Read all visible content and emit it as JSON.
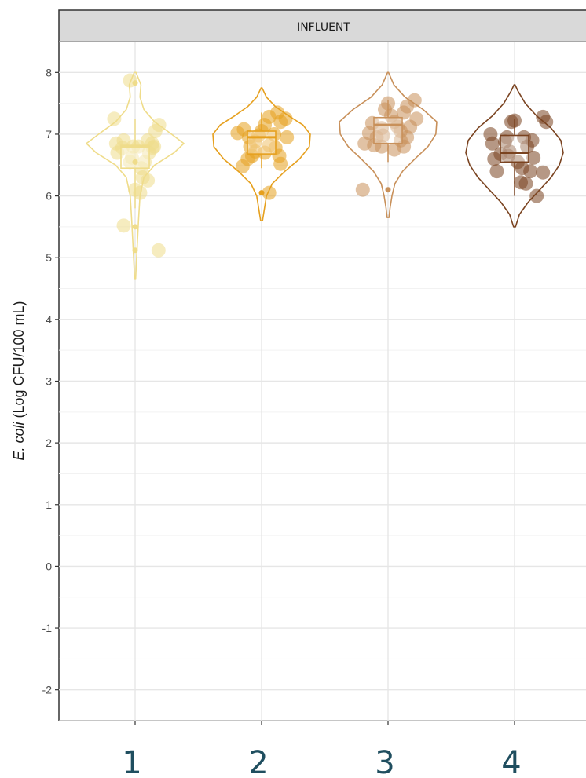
{
  "chart_data": {
    "type": "violin-box-jitter",
    "panel_title": "INFLUENT",
    "ylabel": {
      "italic": "E. coli",
      "rest": " (Log CFU/100 mL)"
    },
    "ylim": [
      -2.5,
      8.5
    ],
    "yticks": [
      -2,
      -1,
      0,
      1,
      2,
      3,
      4,
      5,
      6,
      7,
      8
    ],
    "categories": [
      "1",
      "2",
      "3",
      "4"
    ],
    "grid": true,
    "series": [
      {
        "category": "1",
        "color": "#efdc8a",
        "median": 6.8,
        "q1": 6.45,
        "q3": 6.82,
        "whisker_low": 5.8,
        "whisker_high": 7.25,
        "outliers": [
          7.83,
          5.5,
          5.12,
          6.55
        ],
        "violin_min": 4.65,
        "violin_max": 8.0,
        "violin_profile": [
          [
            4.65,
            0.01
          ],
          [
            5.0,
            0.03
          ],
          [
            5.3,
            0.05
          ],
          [
            5.6,
            0.07
          ],
          [
            6.0,
            0.1
          ],
          [
            6.3,
            0.18
          ],
          [
            6.5,
            0.4
          ],
          [
            6.7,
            0.8
          ],
          [
            6.85,
            1.0
          ],
          [
            7.0,
            0.75
          ],
          [
            7.2,
            0.4
          ],
          [
            7.4,
            0.18
          ],
          [
            7.6,
            0.1
          ],
          [
            7.8,
            0.12
          ],
          [
            8.0,
            0.02
          ]
        ],
        "points": [
          [
            -0.08,
            7.87
          ],
          [
            -0.33,
            7.25
          ],
          [
            -0.3,
            6.85
          ],
          [
            -0.28,
            6.7
          ],
          [
            -0.18,
            6.9
          ],
          [
            -0.2,
            6.78
          ],
          [
            -0.03,
            6.8
          ],
          [
            0.05,
            6.8
          ],
          [
            -0.05,
            6.62
          ],
          [
            0.0,
            6.1
          ],
          [
            0.08,
            6.05
          ],
          [
            0.1,
            6.45
          ],
          [
            0.15,
            6.55
          ],
          [
            0.2,
            6.9
          ],
          [
            0.22,
            6.7
          ],
          [
            0.27,
            6.85
          ],
          [
            0.32,
            7.05
          ],
          [
            0.38,
            7.15
          ],
          [
            0.28,
            6.78
          ],
          [
            0.2,
            6.25
          ],
          [
            0.12,
            6.3
          ],
          [
            -0.18,
            5.52
          ],
          [
            0.37,
            5.12
          ],
          [
            -0.08,
            6.55
          ],
          [
            0.3,
            6.8
          ]
        ]
      },
      {
        "category": "2",
        "color": "#e6a01e",
        "median": 6.95,
        "q1": 6.68,
        "q3": 7.05,
        "whisker_low": 6.45,
        "whisker_high": 7.35,
        "outliers": [
          6.05
        ],
        "violin_min": 5.6,
        "violin_max": 7.75,
        "violin_profile": [
          [
            5.6,
            0.02
          ],
          [
            5.8,
            0.06
          ],
          [
            6.0,
            0.1
          ],
          [
            6.2,
            0.22
          ],
          [
            6.4,
            0.48
          ],
          [
            6.6,
            0.78
          ],
          [
            6.8,
            0.98
          ],
          [
            7.0,
            1.0
          ],
          [
            7.15,
            0.85
          ],
          [
            7.3,
            0.55
          ],
          [
            7.45,
            0.28
          ],
          [
            7.6,
            0.1
          ],
          [
            7.75,
            0.01
          ]
        ],
        "points": [
          [
            -0.38,
            7.02
          ],
          [
            -0.28,
            7.08
          ],
          [
            -0.2,
            6.95
          ],
          [
            -0.18,
            6.8
          ],
          [
            -0.1,
            6.72
          ],
          [
            -0.05,
            6.98
          ],
          [
            0.0,
            7.05
          ],
          [
            0.05,
            7.15
          ],
          [
            0.12,
            7.28
          ],
          [
            0.2,
            7.0
          ],
          [
            0.25,
            7.35
          ],
          [
            0.3,
            7.2
          ],
          [
            0.38,
            7.25
          ],
          [
            0.4,
            6.95
          ],
          [
            0.22,
            6.78
          ],
          [
            0.28,
            6.65
          ],
          [
            0.3,
            6.52
          ],
          [
            -0.3,
            6.48
          ],
          [
            -0.22,
            6.6
          ],
          [
            -0.15,
            6.65
          ],
          [
            0.05,
            6.7
          ],
          [
            0.12,
            6.82
          ],
          [
            0.12,
            6.05
          ],
          [
            -0.1,
            6.88
          ]
        ]
      },
      {
        "category": "3",
        "color": "#c8905a",
        "median": 7.15,
        "q1": 6.85,
        "q3": 7.27,
        "whisker_low": 6.55,
        "whisker_high": 7.55,
        "outliers": [
          6.1
        ],
        "violin_min": 5.65,
        "violin_max": 8.0,
        "violin_profile": [
          [
            5.65,
            0.02
          ],
          [
            5.8,
            0.04
          ],
          [
            6.0,
            0.08
          ],
          [
            6.2,
            0.14
          ],
          [
            6.4,
            0.3
          ],
          [
            6.6,
            0.55
          ],
          [
            6.8,
            0.82
          ],
          [
            7.0,
            0.98
          ],
          [
            7.2,
            1.0
          ],
          [
            7.4,
            0.72
          ],
          [
            7.6,
            0.35
          ],
          [
            7.8,
            0.12
          ],
          [
            8.0,
            0.01
          ]
        ],
        "points": [
          [
            -0.37,
            6.85
          ],
          [
            -0.3,
            7.02
          ],
          [
            -0.25,
            7.18
          ],
          [
            -0.18,
            6.95
          ],
          [
            -0.1,
            7.1
          ],
          [
            -0.05,
            7.4
          ],
          [
            0.0,
            7.5
          ],
          [
            0.05,
            7.3
          ],
          [
            0.1,
            7.2
          ],
          [
            0.15,
            7.12
          ],
          [
            0.2,
            7.05
          ],
          [
            0.25,
            7.35
          ],
          [
            0.3,
            7.45
          ],
          [
            0.35,
            7.12
          ],
          [
            0.42,
            7.55
          ],
          [
            0.45,
            7.25
          ],
          [
            0.2,
            6.9
          ],
          [
            0.25,
            6.8
          ],
          [
            0.1,
            6.75
          ],
          [
            -0.1,
            6.8
          ],
          [
            -0.22,
            6.82
          ],
          [
            -0.08,
            6.98
          ],
          [
            0.3,
            6.95
          ],
          [
            -0.4,
            6.1
          ]
        ]
      },
      {
        "category": "4",
        "color": "#7a4320",
        "median": 6.7,
        "q1": 6.55,
        "q3": 6.98,
        "whisker_low": 6.0,
        "whisker_high": 7.25,
        "outliers": [],
        "violin_min": 5.5,
        "violin_max": 7.8,
        "violin_profile": [
          [
            5.5,
            0.02
          ],
          [
            5.7,
            0.1
          ],
          [
            5.9,
            0.28
          ],
          [
            6.1,
            0.52
          ],
          [
            6.3,
            0.75
          ],
          [
            6.5,
            0.92
          ],
          [
            6.7,
            1.0
          ],
          [
            6.9,
            0.95
          ],
          [
            7.1,
            0.75
          ],
          [
            7.3,
            0.45
          ],
          [
            7.5,
            0.22
          ],
          [
            7.7,
            0.07
          ],
          [
            7.8,
            0.01
          ]
        ],
        "points": [
          [
            -0.38,
            7.0
          ],
          [
            -0.35,
            6.85
          ],
          [
            -0.32,
            6.6
          ],
          [
            -0.28,
            6.4
          ],
          [
            -0.22,
            6.68
          ],
          [
            -0.15,
            6.88
          ],
          [
            -0.12,
            6.95
          ],
          [
            -0.08,
            6.72
          ],
          [
            -0.05,
            7.2
          ],
          [
            0.0,
            7.22
          ],
          [
            0.05,
            6.55
          ],
          [
            0.1,
            6.22
          ],
          [
            0.12,
            6.45
          ],
          [
            0.18,
            6.2
          ],
          [
            0.2,
            6.8
          ],
          [
            0.25,
            6.4
          ],
          [
            0.28,
            6.9
          ],
          [
            0.3,
            6.62
          ],
          [
            0.15,
            6.95
          ],
          [
            0.35,
            6.0
          ],
          [
            0.45,
            6.38
          ],
          [
            0.45,
            7.28
          ],
          [
            0.5,
            7.2
          ],
          [
            -0.1,
            6.65
          ]
        ]
      }
    ]
  }
}
